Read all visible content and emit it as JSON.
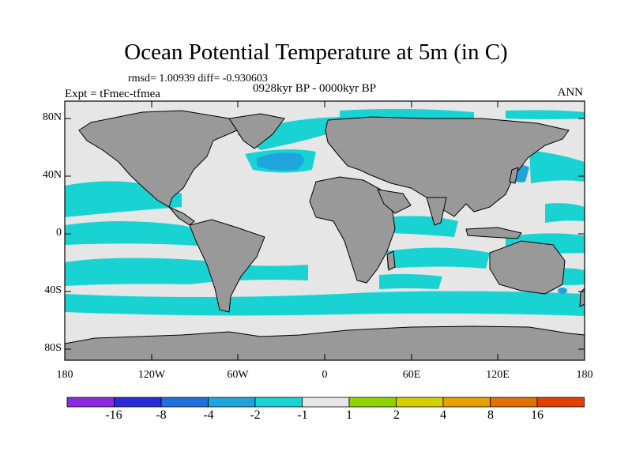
{
  "title": "Ocean Potential Temperature at 5m (in C)",
  "stats": "rmsd= 1.00939 diff= -0.930603",
  "experiment": "Expt = tFmec-tfmea",
  "period": "0928kyr BP - 0000kyr BP",
  "season": "ANN",
  "axes": {
    "y_ticks": [
      "80N",
      "40N",
      "0",
      "40S",
      "80S"
    ],
    "x_ticks": [
      "180",
      "120W",
      "60W",
      "0",
      "60E",
      "120E",
      "180"
    ]
  },
  "colorbar": {
    "labels": [
      "-16",
      "-8",
      "-4",
      "-2",
      "-1",
      "1",
      "2",
      "4",
      "8",
      "16"
    ],
    "colors": [
      "#8a2be2",
      "#2a2ad8",
      "#1f6fdc",
      "#1ea6dc",
      "#19d3d3",
      "#e6e6e6",
      "#8fd400",
      "#d6cf00",
      "#e8a000",
      "#e07000",
      "#e04000"
    ]
  },
  "map_colors": {
    "land": "#999999",
    "neutral_ocean": "#e6e6e6",
    "cyan": "#19d3d3",
    "blue": "#1ea6dc"
  }
}
